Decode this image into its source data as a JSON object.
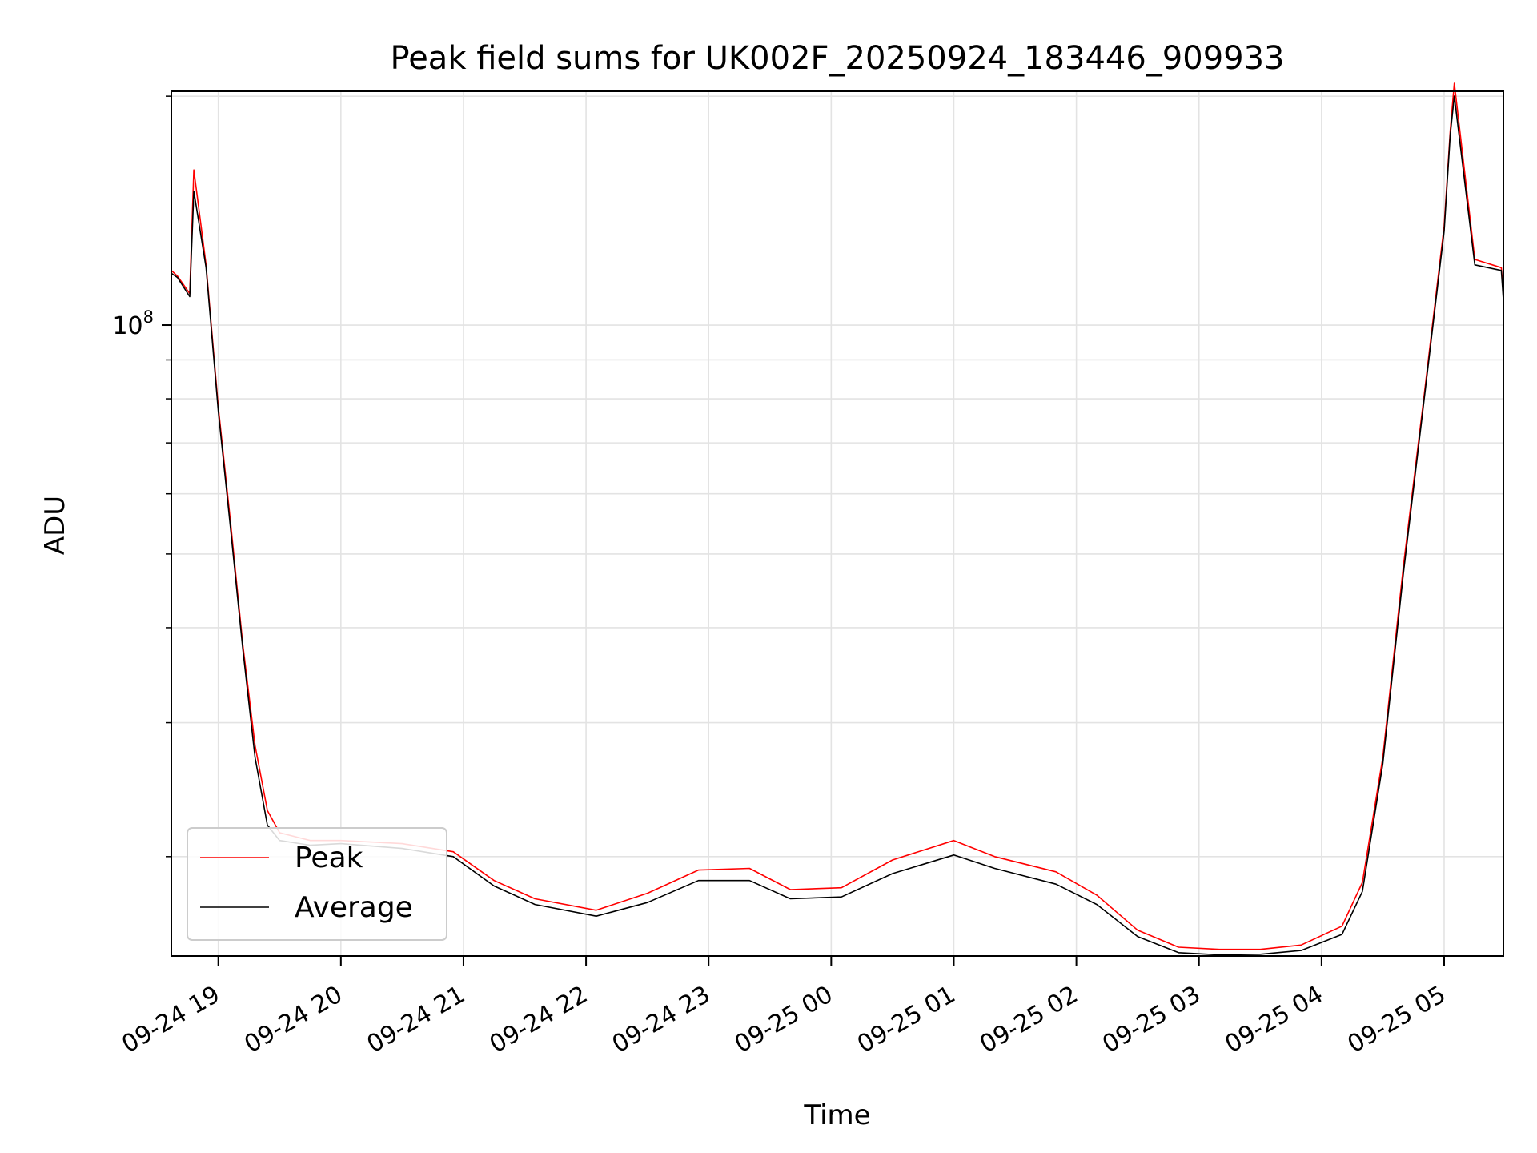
{
  "chart_data": {
    "type": "line",
    "title": "Peak field sums for UK002F_20250924_183446_909933",
    "xlabel": "Time",
    "ylabel": "ADU",
    "yscale": "log",
    "xlim": [
      "2025-09-24 18:37",
      "2025-09-25 05:29"
    ],
    "ylim": [
      14800000,
      203000000
    ],
    "x_ticks": [
      {
        "value": "2025-09-24 19:00",
        "label": "09-24 19"
      },
      {
        "value": "2025-09-24 20:00",
        "label": "09-24 20"
      },
      {
        "value": "2025-09-24 21:00",
        "label": "09-24 21"
      },
      {
        "value": "2025-09-24 22:00",
        "label": "09-24 22"
      },
      {
        "value": "2025-09-24 23:00",
        "label": "09-24 23"
      },
      {
        "value": "2025-09-25 00:00",
        "label": "09-25 00"
      },
      {
        "value": "2025-09-25 01:00",
        "label": "09-25 01"
      },
      {
        "value": "2025-09-25 02:00",
        "label": "09-25 02"
      },
      {
        "value": "2025-09-25 03:00",
        "label": "09-25 03"
      },
      {
        "value": "2025-09-25 04:00",
        "label": "09-25 04"
      },
      {
        "value": "2025-09-25 05:00",
        "label": "09-25 05"
      }
    ],
    "y_ticks": [
      {
        "value": 100000000,
        "base": "10",
        "exp": "8"
      }
    ],
    "y_minor_ticks": [
      20000000,
      30000000,
      40000000,
      50000000,
      60000000,
      70000000,
      80000000,
      90000000,
      200000000
    ],
    "grid": true,
    "legend_position": "lower-left",
    "series": [
      {
        "name": "Peak",
        "color": "#ff0000",
        "x": [
          "2025-09-24 18:37",
          "2025-09-24 18:40",
          "2025-09-24 18:46",
          "2025-09-24 18:48",
          "2025-09-24 18:54",
          "2025-09-24 19:00",
          "2025-09-24 19:06",
          "2025-09-24 19:12",
          "2025-09-24 19:18",
          "2025-09-24 19:24",
          "2025-09-24 19:30",
          "2025-09-24 19:45",
          "2025-09-24 20:00",
          "2025-09-24 20:30",
          "2025-09-24 20:55",
          "2025-09-24 21:15",
          "2025-09-24 21:35",
          "2025-09-24 22:05",
          "2025-09-24 22:30",
          "2025-09-24 22:55",
          "2025-09-24 23:20",
          "2025-09-24 23:40",
          "2025-09-25 00:05",
          "2025-09-25 00:30",
          "2025-09-25 01:00",
          "2025-09-25 01:20",
          "2025-09-25 01:50",
          "2025-09-25 02:10",
          "2025-09-25 02:30",
          "2025-09-25 02:50",
          "2025-09-25 03:10",
          "2025-09-25 03:30",
          "2025-09-25 03:50",
          "2025-09-25 04:10",
          "2025-09-25 04:20",
          "2025-09-25 04:30",
          "2025-09-25 04:40",
          "2025-09-25 04:50",
          "2025-09-25 05:00",
          "2025-09-25 05:03",
          "2025-09-25 05:05",
          "2025-09-25 05:15",
          "2025-09-25 05:28",
          "2025-09-25 05:29"
        ],
        "y": [
          118000000,
          116000000,
          110000000,
          160000000,
          120000000,
          78000000,
          55000000,
          38000000,
          28000000,
          23000000,
          21500000,
          21000000,
          21000000,
          20800000,
          20300000,
          18600000,
          17600000,
          17000000,
          17900000,
          19200000,
          19300000,
          18100000,
          18200000,
          19800000,
          21000000,
          20000000,
          19100000,
          17800000,
          16000000,
          15200000,
          15100000,
          15100000,
          15300000,
          16200000,
          18500000,
          27000000,
          48000000,
          80000000,
          135000000,
          180000000,
          208000000,
          122000000,
          119000000,
          110000000
        ]
      },
      {
        "name": "Average",
        "color": "#000000",
        "x": [
          "2025-09-24 18:37",
          "2025-09-24 18:40",
          "2025-09-24 18:46",
          "2025-09-24 18:48",
          "2025-09-24 18:54",
          "2025-09-24 19:00",
          "2025-09-24 19:06",
          "2025-09-24 19:12",
          "2025-09-24 19:18",
          "2025-09-24 19:24",
          "2025-09-24 19:30",
          "2025-09-24 19:45",
          "2025-09-24 20:00",
          "2025-09-24 20:30",
          "2025-09-24 20:55",
          "2025-09-24 21:15",
          "2025-09-24 21:35",
          "2025-09-24 22:05",
          "2025-09-24 22:30",
          "2025-09-24 22:55",
          "2025-09-24 23:20",
          "2025-09-24 23:40",
          "2025-09-25 00:05",
          "2025-09-25 00:30",
          "2025-09-25 01:00",
          "2025-09-25 01:20",
          "2025-09-25 01:50",
          "2025-09-25 02:10",
          "2025-09-25 02:30",
          "2025-09-25 02:50",
          "2025-09-25 03:10",
          "2025-09-25 03:30",
          "2025-09-25 03:50",
          "2025-09-25 04:10",
          "2025-09-25 04:20",
          "2025-09-25 04:30",
          "2025-09-25 04:40",
          "2025-09-25 04:50",
          "2025-09-25 05:00",
          "2025-09-25 05:03",
          "2025-09-25 05:05",
          "2025-09-25 05:15",
          "2025-09-25 05:28",
          "2025-09-25 05:29"
        ],
        "y": [
          117000000,
          115500000,
          109000000,
          150000000,
          119000000,
          77000000,
          54000000,
          37500000,
          27000000,
          22000000,
          21000000,
          20700000,
          20800000,
          20500000,
          20000000,
          18300000,
          17300000,
          16700000,
          17400000,
          18600000,
          18600000,
          17600000,
          17700000,
          19000000,
          20100000,
          19300000,
          18400000,
          17300000,
          15700000,
          14950000,
          14850000,
          14880000,
          15050000,
          15800000,
          18000000,
          26500000,
          47000000,
          79000000,
          133000000,
          178000000,
          200000000,
          120000000,
          118000000,
          108000000
        ]
      }
    ]
  }
}
